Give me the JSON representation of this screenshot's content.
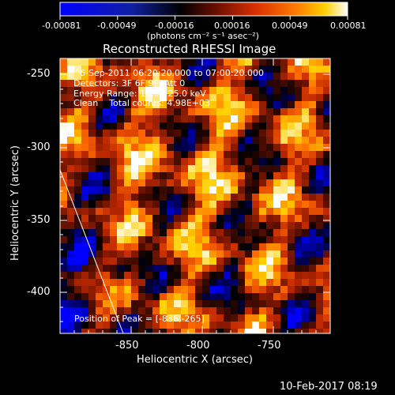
{
  "colorbar": {
    "tick_labels": [
      "-0.00081",
      "-0.00049",
      "-0.00016",
      "0.00016",
      "0.00049",
      "0.00081"
    ],
    "units_label": "(photons cm⁻² s⁻¹ asec⁻²)",
    "vmin": -0.00081,
    "vmax": 0.00081
  },
  "image": {
    "title": "Reconstructed RHESSI Image",
    "annotations": [
      "6-Sep-2011 06:20:20.000 to 07:00:20.000",
      "Detectors: 3F 6F 9F, Att 0",
      "Energy Range: 15.0 - 25.0 keV",
      "Clean    Total counts: 4.98E+03"
    ],
    "peak_text": "Position of Peak = [-836,-265]",
    "x_axis_label": "Heliocentric X (arcsec)",
    "y_axis_label": "Heliocentric Y (arcsec)",
    "x_tick_labels": [
      "-850",
      "-800",
      "-750"
    ],
    "y_tick_labels": [
      "-250",
      "-300",
      "-350",
      "-400"
    ],
    "x_range": [
      -895,
      -705
    ],
    "y_range": [
      -427,
      -235
    ]
  },
  "footer": {
    "timestamp": "10-Feb-2017 08:19"
  },
  "colors": {
    "background": "#000000",
    "axes": "#ffffff",
    "colormap": [
      "#0000ff",
      "#00008a",
      "#000000",
      "#5a0f00",
      "#c42a00",
      "#ff6a00",
      "#ffd000",
      "#ffffff"
    ]
  }
}
